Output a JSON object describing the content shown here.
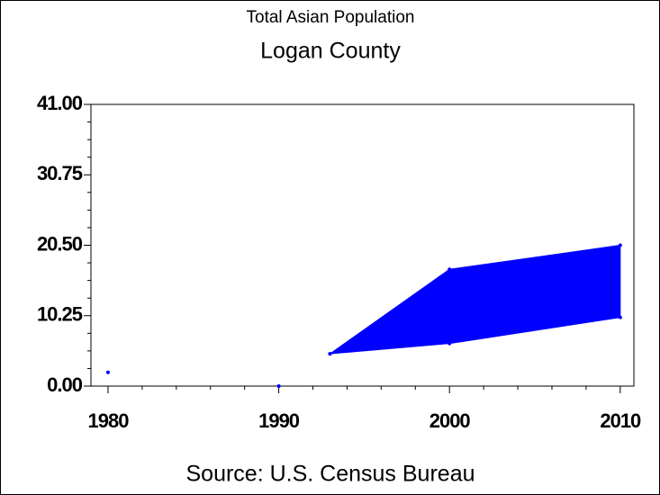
{
  "chart_data": {
    "type": "band",
    "title": "Total Asian Population",
    "subtitle": "Logan County",
    "footnote": "Source: U.S. Census Bureau",
    "color": "#0000ff",
    "band": {
      "x": [
        1993,
        2000,
        2010
      ],
      "lower": [
        4.7,
        6.2,
        10
      ],
      "upper": [
        4.7,
        17,
        20.5
      ]
    },
    "points": {
      "x": [
        1980,
        1990
      ],
      "values": [
        2,
        0
      ]
    },
    "xlim": [
      1979,
      2010.8
    ],
    "xticks": [
      1980,
      1990,
      2000,
      2010
    ],
    "ylim": [
      0,
      41
    ],
    "yticks": [
      {
        "value": 0,
        "label": "0.00"
      },
      {
        "value": 10.25,
        "label": "10.25"
      },
      {
        "value": 20.5,
        "label": "20.50"
      },
      {
        "value": 30.75,
        "label": "30.75"
      },
      {
        "value": 41,
        "label": "41.00"
      }
    ]
  }
}
